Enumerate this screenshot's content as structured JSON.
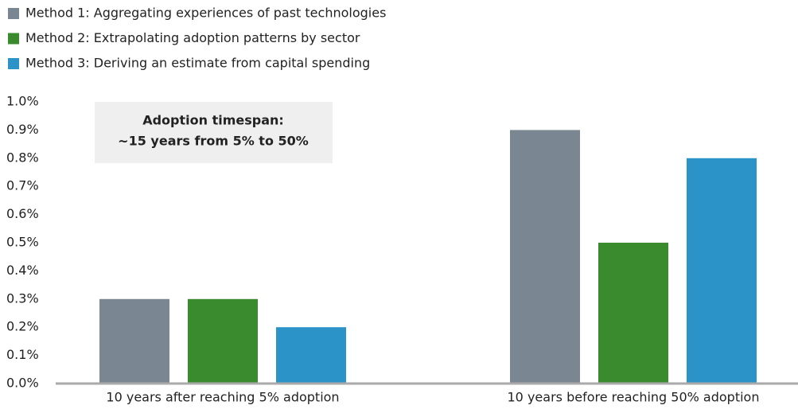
{
  "chart_data": {
    "type": "bar",
    "annotation": [
      "Adoption timespan:",
      "~15 years from 5% to 50%"
    ],
    "categories": [
      "10 years after reaching 5% adoption",
      "10 years before reaching 50% adoption"
    ],
    "series": [
      {
        "name": "Method 1: Aggregating experiences of past technologies",
        "color": "#7a8793",
        "values": [
          0.3,
          0.9
        ]
      },
      {
        "name": "Method 2: Extrapolating adoption patterns by sector",
        "color": "#3a8a2e",
        "values": [
          0.3,
          0.5
        ]
      },
      {
        "name": "Method 3: Deriving an estimate from capital spending",
        "color": "#2b93c8",
        "values": [
          0.2,
          0.8
        ]
      }
    ],
    "ylim": [
      0,
      1.0
    ],
    "yticks": [
      {
        "value": 0,
        "label": "0.0%"
      },
      {
        "value": 0.1,
        "label": "0.1%"
      },
      {
        "value": 0.2,
        "label": "0.2%"
      },
      {
        "value": 0.3,
        "label": "0.3%"
      },
      {
        "value": 0.4,
        "label": "0.4%"
      },
      {
        "value": 0.5,
        "label": "0.5%"
      },
      {
        "value": 0.6,
        "label": "0.6%"
      },
      {
        "value": 0.7,
        "label": "0.7%"
      },
      {
        "value": 0.8,
        "label": "0.8%"
      },
      {
        "value": 0.9,
        "label": "0.9%"
      },
      {
        "value": 1.0,
        "label": "1.0%"
      }
    ],
    "grid": false,
    "legend": "top-left"
  }
}
